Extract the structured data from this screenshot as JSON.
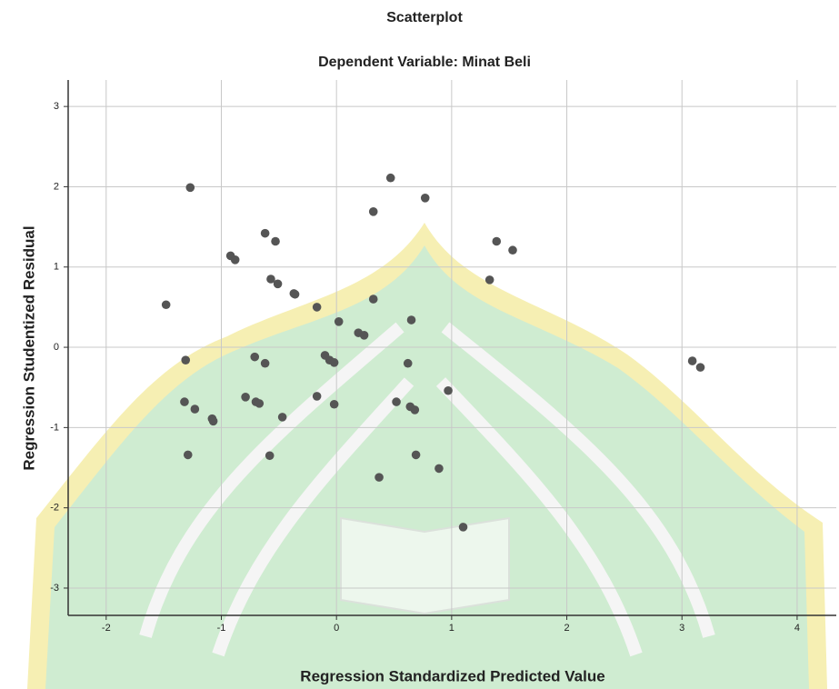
{
  "chart_data": {
    "type": "scatter",
    "title": "Scatterplot",
    "subtitle": "Dependent Variable: Minat Beli",
    "x_label": "Regression Standardized Predicted Value",
    "y_label": "Regression Studentized Residual",
    "xlim": [
      -2.33,
      4.34
    ],
    "ylim": [
      -3.34,
      3.33
    ],
    "xticks": [
      -2,
      -1,
      0,
      1,
      2,
      3,
      4
    ],
    "yticks": [
      -3,
      -2,
      -1,
      0,
      1,
      2,
      3
    ],
    "grid": true,
    "color": "#555555",
    "x": [
      -1.27,
      -1.48,
      -0.92,
      -0.88,
      -0.62,
      -0.53,
      -0.57,
      -0.51,
      -0.37,
      -0.36,
      -0.17,
      0.02,
      0.47,
      0.32,
      0.77,
      0.32,
      0.19,
      0.24,
      0.65,
      1.39,
      1.53,
      1.33,
      3.09,
      3.16,
      -1.31,
      -0.71,
      -0.62,
      -0.1,
      -0.06,
      -0.02,
      0.62,
      -1.32,
      -1.23,
      -1.08,
      -1.07,
      -0.79,
      -0.7,
      -0.67,
      -0.47,
      -0.17,
      -0.02,
      0.52,
      0.64,
      0.68,
      0.97,
      -1.29,
      -0.58,
      0.69,
      0.89,
      0.37,
      1.1
    ],
    "values": [
      1.99,
      0.53,
      1.14,
      1.09,
      1.42,
      1.32,
      0.85,
      0.79,
      0.67,
      0.66,
      0.5,
      0.32,
      2.11,
      1.69,
      1.86,
      0.6,
      0.18,
      0.15,
      0.34,
      1.32,
      1.21,
      0.84,
      -0.17,
      -0.25,
      -0.16,
      -0.12,
      -0.2,
      -0.1,
      -0.16,
      -0.19,
      -0.2,
      -0.68,
      -0.77,
      -0.89,
      -0.92,
      -0.62,
      -0.68,
      -0.7,
      -0.87,
      -0.61,
      -0.71,
      -0.68,
      -0.74,
      -0.78,
      -0.54,
      -1.34,
      -1.35,
      -1.34,
      -1.51,
      -1.62,
      -2.24
    ]
  }
}
